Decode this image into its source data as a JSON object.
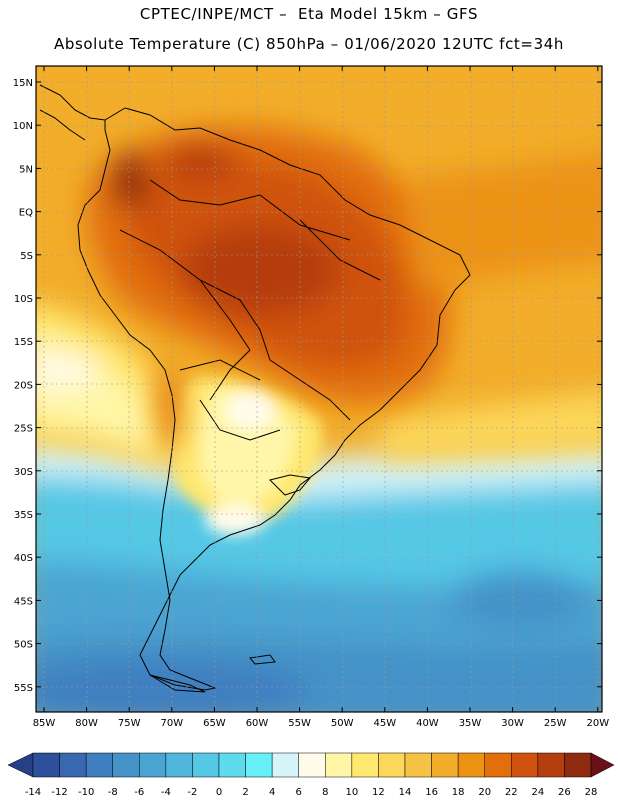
{
  "header": {
    "title_line1": "CPTEC/INPE/MCT –  Eta Model 15km – GFS",
    "title_line2": "Absolute Temperature (C) 850hPa – 01/06/2020 12UTC fct=34h"
  },
  "map": {
    "lat_labels": [
      "15N",
      "10N",
      "5N",
      "EQ",
      "5S",
      "10S",
      "15S",
      "20S",
      "25S",
      "30S",
      "35S",
      "40S",
      "45S",
      "50S",
      "55S"
    ],
    "lon_labels": [
      "85W",
      "80W",
      "75W",
      "70W",
      "65W",
      "60W",
      "55W",
      "50W",
      "45W",
      "40W",
      "35W",
      "30W",
      "25W",
      "20W"
    ]
  },
  "colorbar": {
    "labels": [
      "-14",
      "-12",
      "-10",
      "-8",
      "-6",
      "-4",
      "-2",
      "0",
      "2",
      "4",
      "6",
      "8",
      "10",
      "12",
      "14",
      "16",
      "18",
      "20",
      "22",
      "24",
      "26",
      "28"
    ],
    "colors": [
      "#2d4f9c",
      "#3868b0",
      "#3f7fc0",
      "#4592c8",
      "#4ba5d2",
      "#50b6dc",
      "#55c8e6",
      "#5edcee",
      "#66f0f8",
      "#d6f5fb",
      "#fffbe8",
      "#fff6a8",
      "#ffe870",
      "#fcd75a",
      "#f6c244",
      "#f2ad2a",
      "#ec9314",
      "#e26e0c",
      "#cf520e",
      "#b53e0e",
      "#8e2a10"
    ],
    "left_cap": "#263f86",
    "right_cap": "#6a1018"
  }
}
